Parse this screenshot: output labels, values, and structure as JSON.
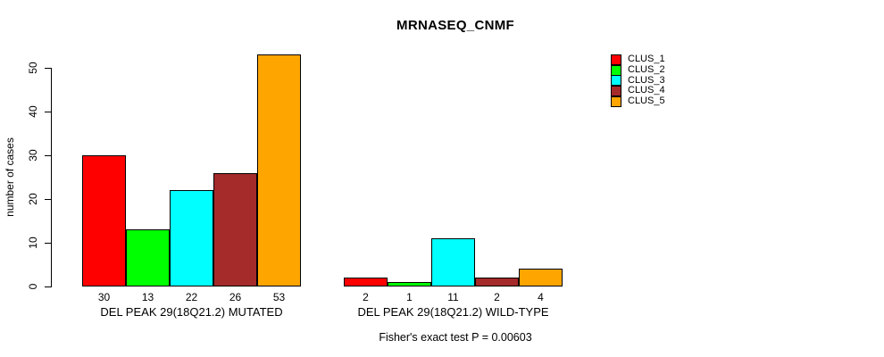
{
  "chart_data": {
    "type": "bar",
    "title": "MRNASEQ_CNMF",
    "ylabel": "number of cases",
    "xlabel": "",
    "ylim": [
      0,
      50
    ],
    "yticks": [
      0,
      10,
      20,
      30,
      40,
      50
    ],
    "grid": false,
    "legend_position": "right",
    "legend": [
      {
        "label": "CLUS_1",
        "color": "#ff0000"
      },
      {
        "label": "CLUS_2",
        "color": "#00ff00"
      },
      {
        "label": "CLUS_3",
        "color": "#00ffff"
      },
      {
        "label": "CLUS_4",
        "color": "#a52a2a"
      },
      {
        "label": "CLUS_5",
        "color": "#ffa500"
      }
    ],
    "series_colors": [
      "#ff0000",
      "#00ff00",
      "#00ffff",
      "#a52a2a",
      "#ffa500"
    ],
    "groups": [
      {
        "label": "DEL PEAK 29(18Q21.2) MUTATED",
        "values": [
          30,
          13,
          22,
          26,
          53
        ]
      },
      {
        "label": "DEL PEAK 29(18Q21.2) WILD-TYPE",
        "values": [
          2,
          1,
          11,
          2,
          4
        ]
      }
    ],
    "annotation": "Fisher's exact test P = 0.00603",
    "axis_color": "#000000",
    "bar_border_color": "#000000"
  }
}
